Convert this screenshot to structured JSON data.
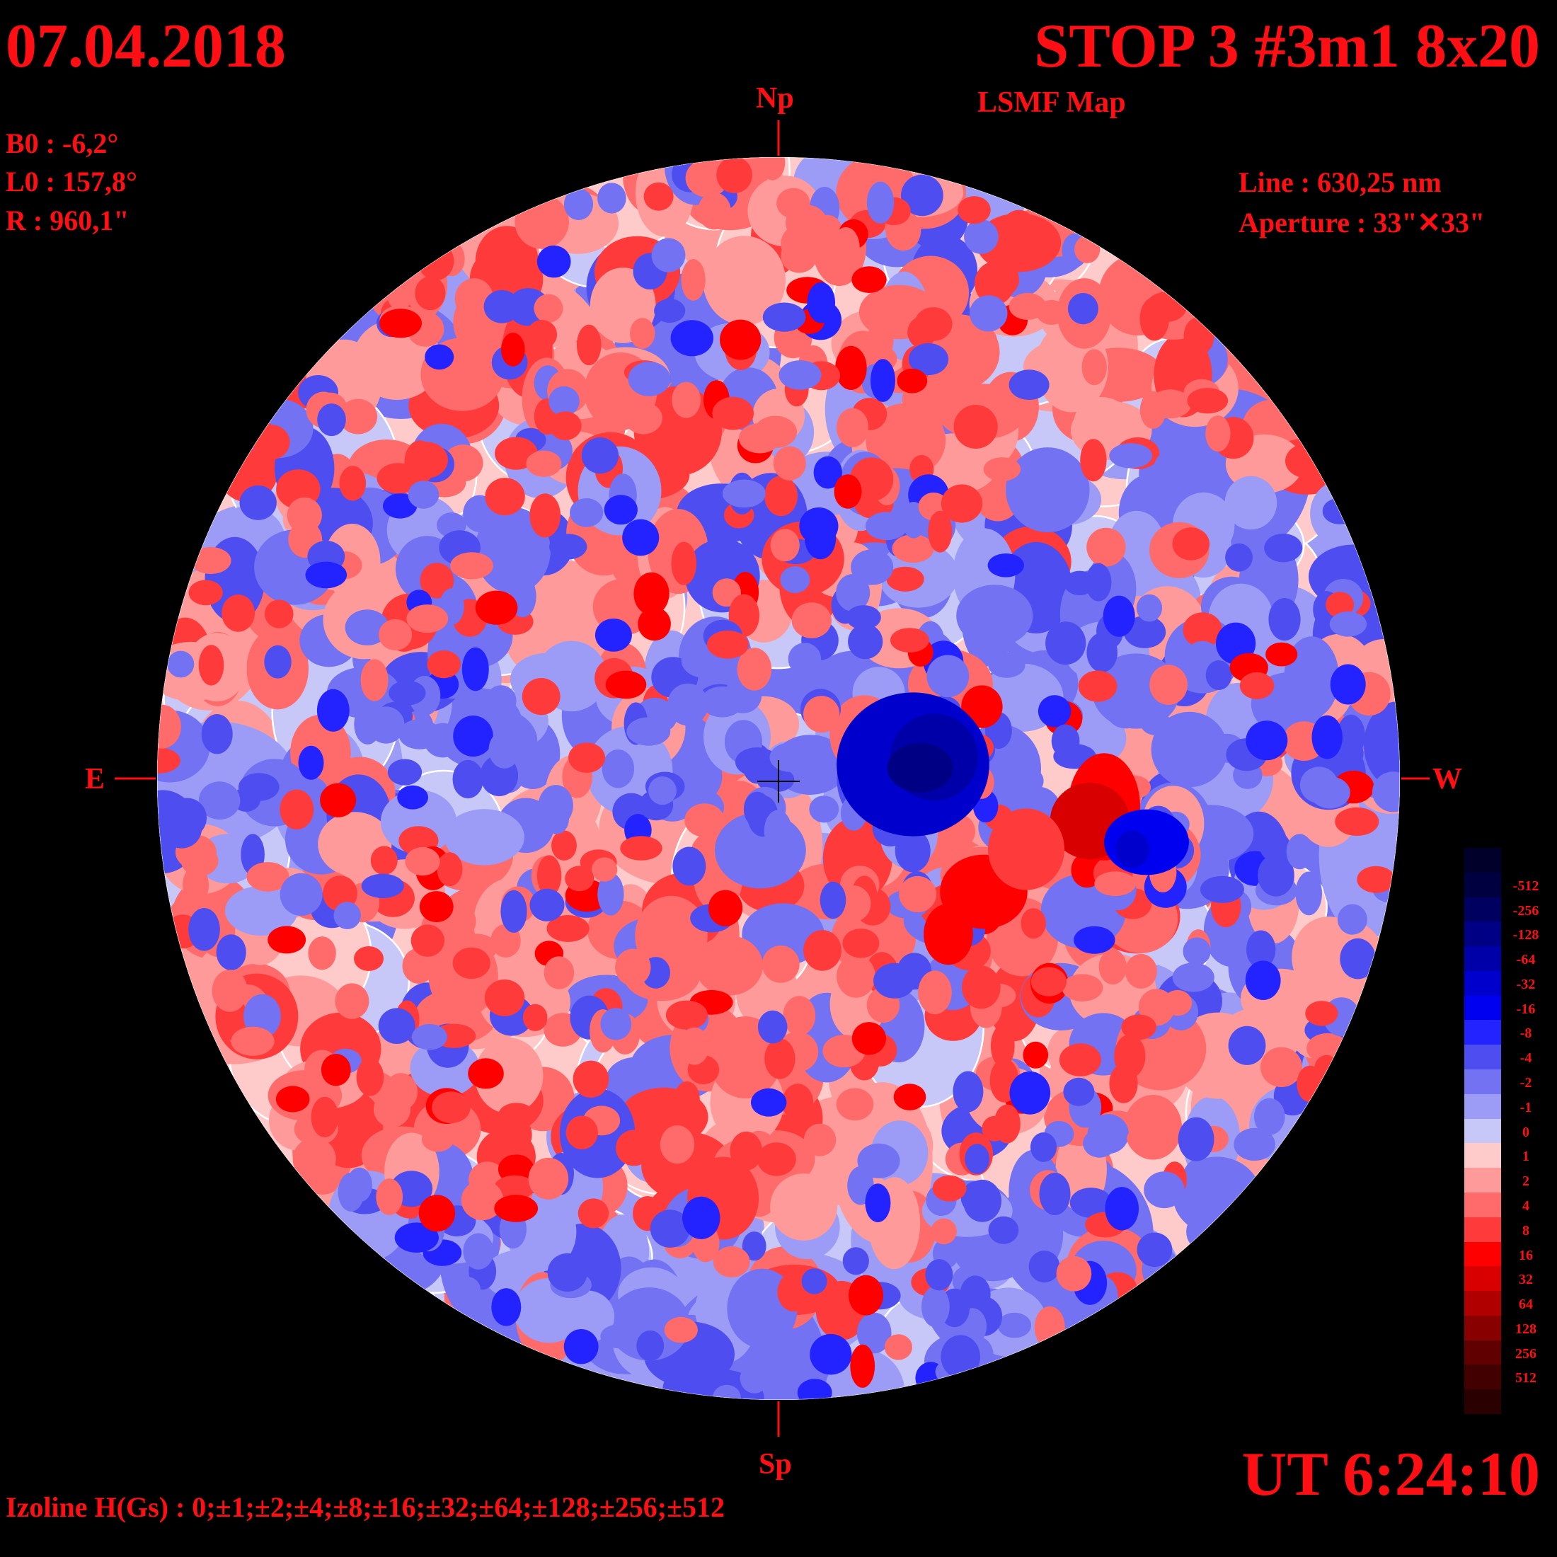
{
  "header": {
    "date": "07.04.2018",
    "title": "STOP 3 #3m1 8x20",
    "subtitle": "LSMF  Map"
  },
  "parameters": {
    "b0": "B0 : -6,2°",
    "l0": "L0 : 157,8°",
    "r": "R  : 960,1\"",
    "line": "Line :  630,25 nm",
    "aperture": "Aperture : 33\"✕33\""
  },
  "directions": {
    "north": "Np",
    "south": "Sp",
    "east": "E",
    "west": "W"
  },
  "footer": {
    "time": "UT 6:24:10",
    "izoline": "Izoline H(Gs) : 0;±1;±2;±4;±8;±16;±32;±64;±128;±256;±512"
  },
  "colors": {
    "text": "#ff0f14",
    "background": "#000000",
    "contour": "#ffffff"
  },
  "scale": [
    {
      "label": "",
      "color": "#00002a"
    },
    {
      "label": "-512",
      "color": "#000040"
    },
    {
      "label": "-256",
      "color": "#000060"
    },
    {
      "label": "-128",
      "color": "#000084"
    },
    {
      "label": "-64",
      "color": "#0000a8"
    },
    {
      "label": "-32",
      "color": "#0000cc"
    },
    {
      "label": "-16",
      "color": "#0000f0"
    },
    {
      "label": "-8",
      "color": "#2323ff"
    },
    {
      "label": "-4",
      "color": "#4e4ef0"
    },
    {
      "label": "-2",
      "color": "#7272f2"
    },
    {
      "label": "-1",
      "color": "#9c9cf6"
    },
    {
      "label": "0",
      "color": "#c8c8f8"
    },
    {
      "label": "1",
      "color": "#ffcaca"
    },
    {
      "label": "2",
      "color": "#ff9a9a"
    },
    {
      "label": "4",
      "color": "#ff6a6a"
    },
    {
      "label": "8",
      "color": "#ff3a3a"
    },
    {
      "label": "16",
      "color": "#ff0000"
    },
    {
      "label": "32",
      "color": "#d80000"
    },
    {
      "label": "64",
      "color": "#b00000"
    },
    {
      "label": "128",
      "color": "#880000"
    },
    {
      "label": "256",
      "color": "#600000"
    },
    {
      "label": "512",
      "color": "#420000"
    },
    {
      "label": "",
      "color": "#2a0000"
    }
  ]
}
